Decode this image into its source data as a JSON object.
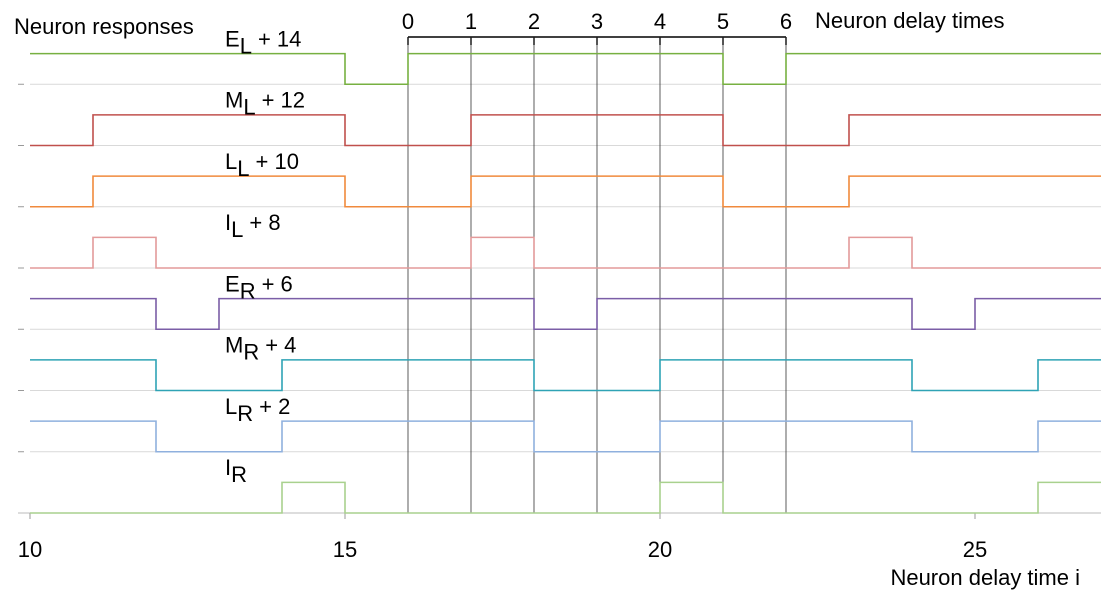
{
  "chart_data": {
    "type": "step",
    "title": "Neuron responses",
    "x_label": "Neuron delay time i",
    "x": [
      10,
      11,
      12,
      13,
      14,
      15,
      16,
      17,
      18,
      19,
      20,
      21,
      22,
      23,
      24,
      25,
      26,
      27
    ],
    "xlim": [
      10,
      27
    ],
    "xticks": [
      10,
      15,
      20,
      25
    ],
    "ylim": [
      0,
      16
    ],
    "yticks": [
      0,
      2,
      4,
      6,
      8,
      10,
      12,
      14
    ],
    "grid": true,
    "delay_axis_label": "Neuron delay times",
    "delay_ticks": [
      {
        "value": 16,
        "label": "0"
      },
      {
        "value": 17,
        "label": "1"
      },
      {
        "value": 18,
        "label": "2"
      },
      {
        "value": 19,
        "label": "3"
      },
      {
        "value": 20,
        "label": "4"
      },
      {
        "value": 21,
        "label": "5"
      },
      {
        "value": 22,
        "label": "6"
      }
    ],
    "series": [
      {
        "name": "E",
        "subscript": "L",
        "suffix": "+ 14",
        "color": "#77b041",
        "values": [
          15,
          15,
          15,
          15,
          15,
          14,
          15,
          15,
          15,
          15,
          15,
          14,
          15,
          15,
          15,
          15,
          15,
          15
        ]
      },
      {
        "name": "M",
        "subscript": "L",
        "suffix": "+ 12",
        "color": "#c0504d",
        "values": [
          12,
          13,
          13,
          13,
          13,
          12,
          12,
          13,
          13,
          13,
          13,
          12,
          12,
          13,
          13,
          13,
          13,
          13
        ]
      },
      {
        "name": "L",
        "subscript": "L",
        "suffix": "+ 10",
        "color": "#f08a3c",
        "values": [
          10,
          11,
          11,
          11,
          11,
          10,
          10,
          11,
          11,
          11,
          11,
          10,
          10,
          11,
          11,
          11,
          11,
          11
        ]
      },
      {
        "name": "I",
        "subscript": "L",
        "suffix": "+ 8",
        "color": "#e39a9a",
        "values": [
          8,
          9,
          8,
          8,
          8,
          8,
          8,
          9,
          8,
          8,
          8,
          8,
          8,
          9,
          8,
          8,
          8,
          8
        ]
      },
      {
        "name": "E",
        "subscript": "R",
        "suffix": "+ 6",
        "color": "#7b5ea7",
        "values": [
          7,
          7,
          6,
          7,
          7,
          7,
          7,
          7,
          6,
          7,
          7,
          7,
          7,
          7,
          6,
          7,
          7,
          7
        ]
      },
      {
        "name": "M",
        "subscript": "R",
        "suffix": "+ 4",
        "color": "#2fa3b5",
        "values": [
          5,
          5,
          4,
          4,
          5,
          5,
          5,
          5,
          4,
          4,
          5,
          5,
          5,
          5,
          4,
          4,
          5,
          5
        ]
      },
      {
        "name": "L",
        "subscript": "R",
        "suffix": "+ 2",
        "color": "#8fb0de",
        "values": [
          3,
          3,
          2,
          2,
          3,
          3,
          3,
          3,
          2,
          2,
          3,
          3,
          3,
          3,
          2,
          2,
          3,
          3
        ]
      },
      {
        "name": "I",
        "subscript": "R",
        "suffix": "",
        "color": "#a9d18e",
        "values": [
          0,
          0,
          0,
          0,
          1,
          0,
          0,
          0,
          0,
          0,
          1,
          0,
          0,
          0,
          0,
          0,
          1,
          1
        ]
      }
    ]
  }
}
